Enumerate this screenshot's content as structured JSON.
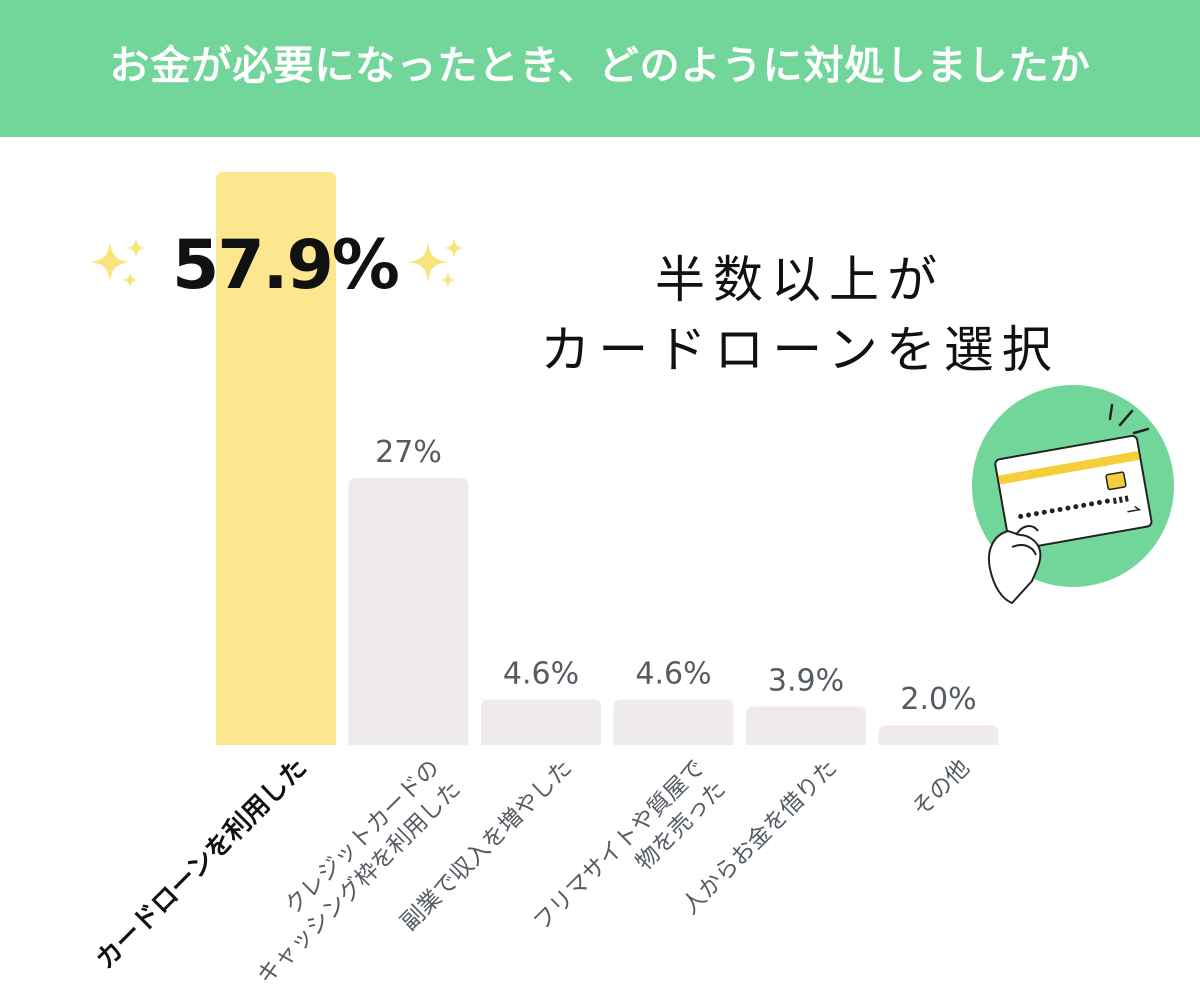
{
  "header": {
    "title": "お金が必要になったとき、どのように対処しましたか"
  },
  "highlight": {
    "value": "57.9%",
    "headline_line1": "半数以上が",
    "headline_line2": "カードローンを選択"
  },
  "colors": {
    "header_bg": "#72d69a",
    "highlight_bar": "#fce78f",
    "other_bar": "#efebea",
    "sparkle": "#f8e47a",
    "illustration_circle": "#72d69a",
    "card_stripe": "#f4cf3a"
  },
  "icons": [
    "sparkle-icon",
    "credit-card-hand-icon"
  ],
  "chart_data": {
    "type": "bar",
    "categories": [
      [
        "カードローンを利用した"
      ],
      [
        "クレジットカードの",
        "キャッシング枠を利用した"
      ],
      [
        "副業で収入を増やした"
      ],
      [
        "フリマサイトや質屋で",
        "物を売った"
      ],
      [
        "人からお金を借りた"
      ],
      [
        "その他"
      ]
    ],
    "values": [
      57.9,
      27.0,
      4.6,
      4.6,
      3.9,
      2.0
    ],
    "value_labels": [
      "57.9%",
      "27%",
      "4.6%",
      "4.6%",
      "3.9%",
      "2.0%"
    ],
    "highlight_index": 0,
    "ylim": [
      0,
      57.9
    ],
    "grid": false,
    "legend": "none"
  }
}
